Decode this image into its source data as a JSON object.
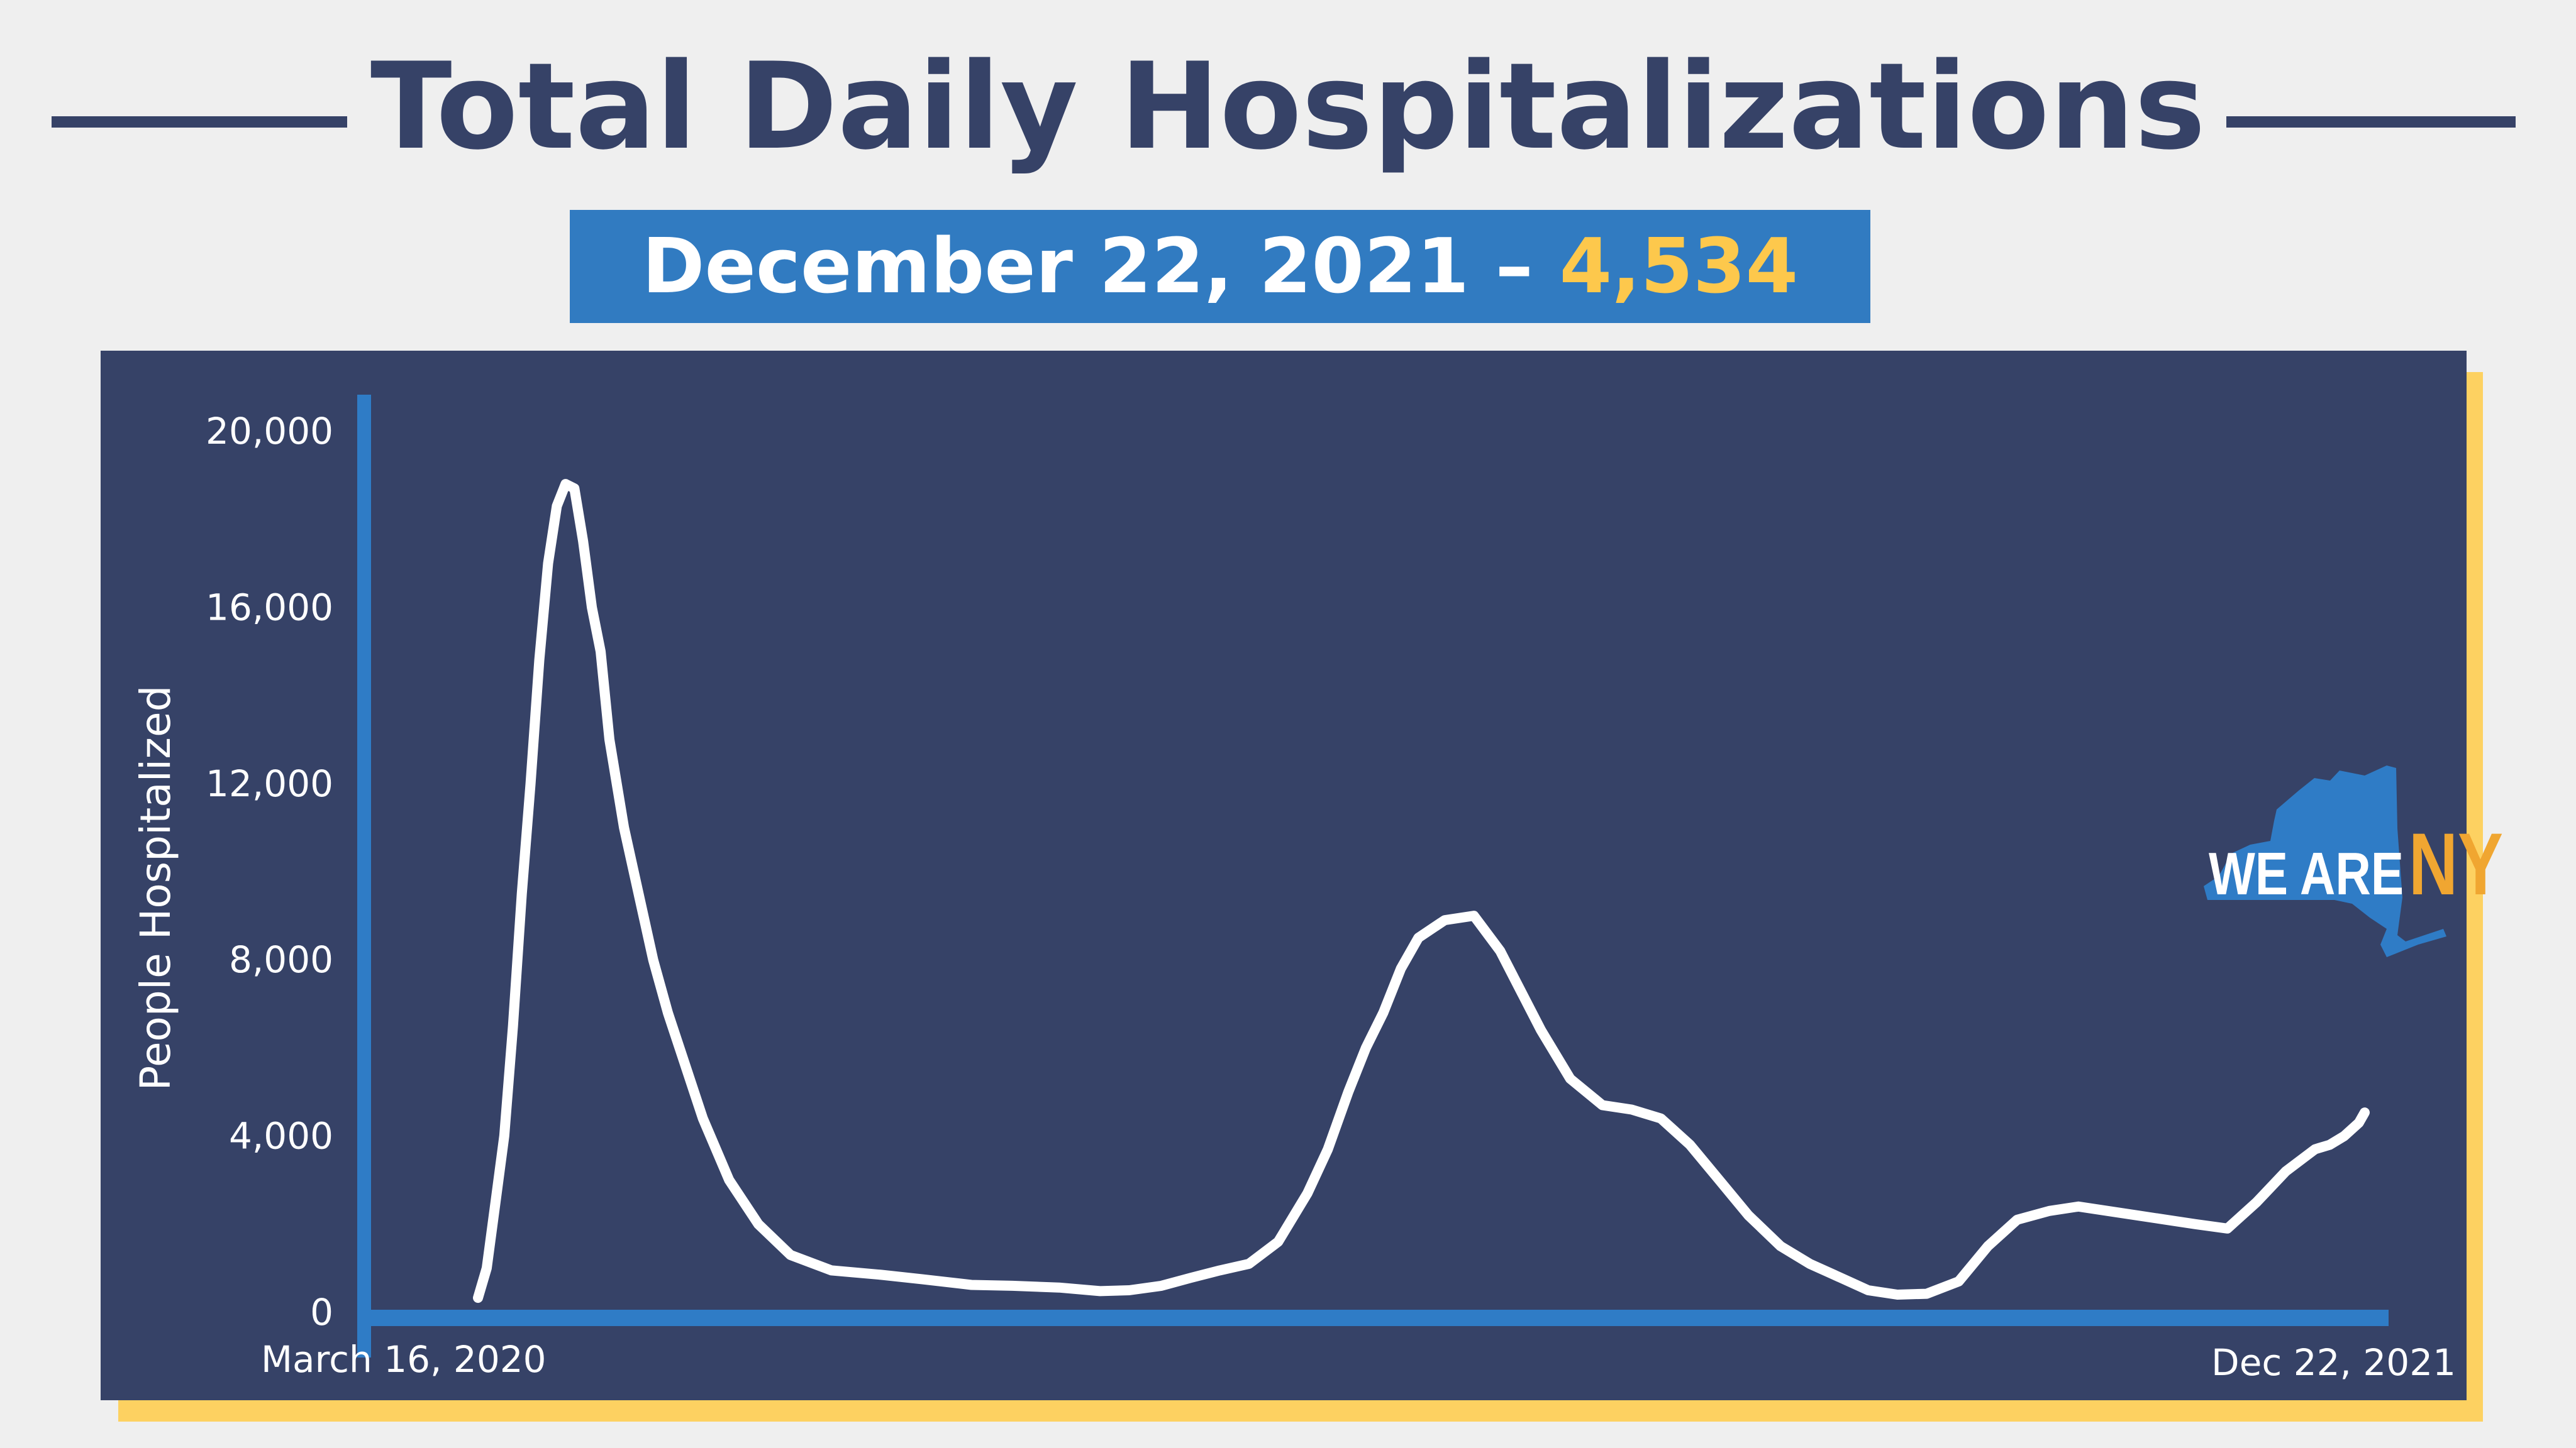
{
  "colors": {
    "background": "#efefef",
    "navy": "#364267",
    "blue": "#317bc1",
    "gold": "#fdc84c",
    "gold_shadow": "#fdd161",
    "line": "#ffffff"
  },
  "header": {
    "title": "Total Daily Hospitalizations",
    "banner_date": "December 22, 2021 – ",
    "banner_value": "4,534"
  },
  "logo": {
    "icon": "new-york-state-map-icon",
    "text_main": "WE ARE",
    "text_accent": "NY"
  },
  "chart_data": {
    "type": "line",
    "ylabel": "People Hospitalized",
    "xlabel": "",
    "x_tick_labels": [
      "March 16, 2020",
      "Dec 22, 2021"
    ],
    "y_ticks": [
      0,
      4000,
      8000,
      12000,
      16000,
      20000
    ],
    "y_tick_labels": [
      "0",
      "4,000",
      "8,000",
      "12,000",
      "16,000",
      "20,000"
    ],
    "ylim": [
      0,
      20000
    ],
    "x_range": [
      "2020-03-16",
      "2021-12-22"
    ],
    "grid": false,
    "legend": "none",
    "series": [
      {
        "x": [
          "2020-03-16",
          "2020-03-19",
          "2020-03-22",
          "2020-03-25",
          "2020-03-28",
          "2020-03-31",
          "2020-04-03",
          "2020-04-06",
          "2020-04-09",
          "2020-04-12",
          "2020-04-15",
          "2020-04-18",
          "2020-04-21",
          "2020-04-24",
          "2020-04-27",
          "2020-04-30",
          "2020-05-05",
          "2020-05-10",
          "2020-05-15",
          "2020-05-20",
          "2020-05-25",
          "2020-06-01",
          "2020-06-10",
          "2020-06-20",
          "2020-07-01",
          "2020-07-15",
          "2020-08-01",
          "2020-08-15",
          "2020-09-01",
          "2020-09-15",
          "2020-10-01",
          "2020-10-15",
          "2020-10-25",
          "2020-11-05",
          "2020-11-15",
          "2020-11-25",
          "2020-12-05",
          "2020-12-15",
          "2020-12-25",
          "2021-01-01",
          "2021-01-08",
          "2021-01-14",
          "2021-01-20",
          "2021-01-26",
          "2021-02-01",
          "2021-02-10",
          "2021-02-20",
          "2021-03-01",
          "2021-03-15",
          "2021-03-25",
          "2021-04-05",
          "2021-04-15",
          "2021-04-25",
          "2021-05-05",
          "2021-05-15",
          "2021-05-25",
          "2021-06-05",
          "2021-06-15",
          "2021-06-25",
          "2021-07-05",
          "2021-07-15",
          "2021-07-25",
          "2021-08-05",
          "2021-08-15",
          "2021-08-25",
          "2021-09-05",
          "2021-09-15",
          "2021-09-25",
          "2021-10-05",
          "2021-10-15",
          "2021-10-25",
          "2021-11-05",
          "2021-11-15",
          "2021-11-25",
          "2021-12-05",
          "2021-12-10",
          "2021-12-15",
          "2021-12-20",
          "2021-12-22"
        ],
        "values": [
          326,
          1000,
          2500,
          4000,
          6500,
          9500,
          12000,
          14800,
          17000,
          18300,
          18800,
          18700,
          17500,
          16000,
          15000,
          13000,
          11000,
          9500,
          8000,
          6800,
          5800,
          4400,
          3000,
          2000,
          1300,
          950,
          850,
          750,
          620,
          600,
          560,
          480,
          500,
          600,
          780,
          950,
          1100,
          1600,
          2700,
          3700,
          5000,
          6000,
          6800,
          7800,
          8500,
          8900,
          9000,
          8200,
          6400,
          5300,
          4700,
          4600,
          4400,
          3800,
          3000,
          2200,
          1500,
          1100,
          800,
          500,
          400,
          420,
          700,
          1500,
          2100,
          2300,
          2400,
          2300,
          2200,
          2100,
          2000,
          1900,
          2500,
          3200,
          3700,
          3800,
          4000,
          4300,
          4534
        ]
      }
    ]
  }
}
